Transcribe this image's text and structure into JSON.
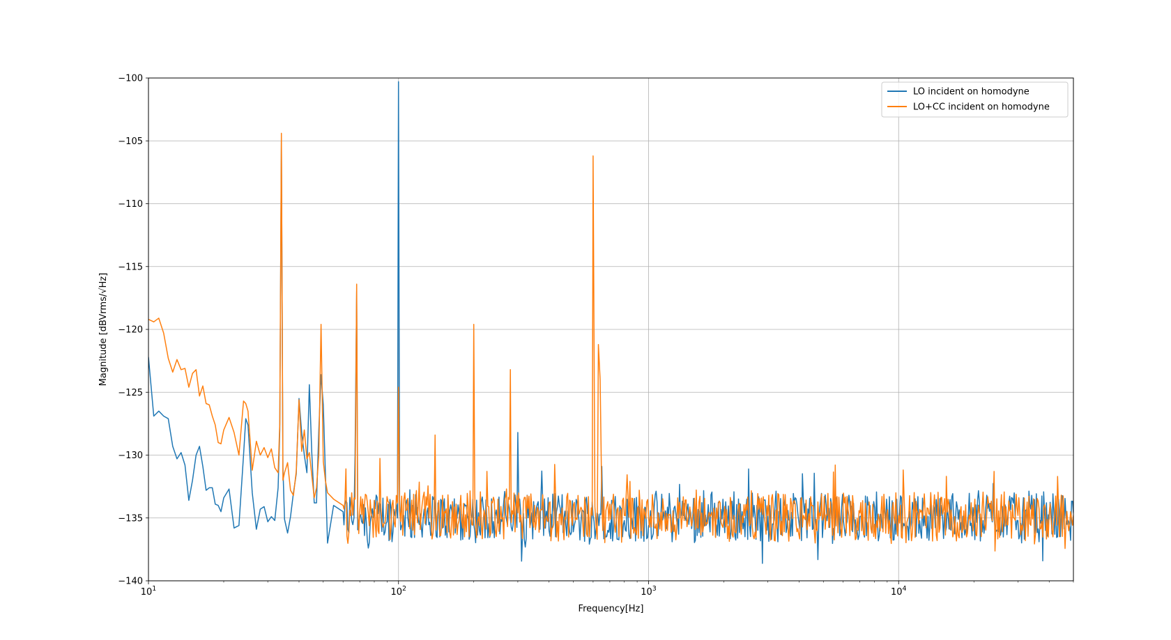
{
  "chart_data": {
    "type": "line",
    "title": "",
    "xlabel": "Frequency[Hz]",
    "ylabel": "Magnitude [dBVrms/√Hz]",
    "xscale": "log",
    "xlim": [
      10,
      50000
    ],
    "ylim": [
      -140,
      -100
    ],
    "grid": true,
    "legend_position": "top-right",
    "x_ticks": [
      {
        "value": 10,
        "base": "10",
        "exp": "1"
      },
      {
        "value": 100,
        "base": "10",
        "exp": "2"
      },
      {
        "value": 1000,
        "base": "10",
        "exp": "3"
      },
      {
        "value": 10000,
        "base": "10",
        "exp": "4"
      }
    ],
    "y_ticks": [
      {
        "value": -100,
        "label": "−100"
      },
      {
        "value": -105,
        "label": "−105"
      },
      {
        "value": -110,
        "label": "−110"
      },
      {
        "value": -115,
        "label": "−115"
      },
      {
        "value": -120,
        "label": "−120"
      },
      {
        "value": -125,
        "label": "−125"
      },
      {
        "value": -130,
        "label": "−130"
      },
      {
        "value": -135,
        "label": "−135"
      },
      {
        "value": -140,
        "label": "−140"
      }
    ],
    "series": [
      {
        "name": "LO incident on homodyne",
        "color": "#1f77b4",
        "x": [
          10,
          10.5,
          11,
          11.5,
          12,
          12.5,
          13,
          13.5,
          14,
          14.5,
          15,
          15.5,
          16,
          16.5,
          17,
          17.5,
          18,
          18.5,
          19,
          19.5,
          20,
          21,
          22,
          23,
          24,
          24.5,
          25,
          26,
          27,
          28,
          29,
          30,
          31,
          32,
          33,
          33.5,
          34,
          34.5,
          35,
          36,
          37,
          38,
          39,
          40,
          41,
          42,
          43,
          44,
          45,
          46,
          47,
          48,
          49,
          50,
          51,
          52,
          55,
          60,
          65,
          67,
          68,
          70,
          75,
          80,
          85,
          90,
          95,
          99,
          100,
          101,
          105,
          110,
          120,
          130,
          150,
          170,
          190,
          200,
          220,
          250,
          280,
          300,
          350,
          400,
          500,
          600,
          650,
          700,
          800,
          1000,
          1200,
          1500,
          2000,
          3000,
          5000,
          7000,
          10000,
          15000,
          20000,
          30000,
          40000,
          50000
        ],
        "y": [
          -122.2,
          -126.9,
          -126.5,
          -126.9,
          -127.1,
          -129.3,
          -130.3,
          -129.8,
          -130.8,
          -133.6,
          -132.0,
          -130.0,
          -129.3,
          -130.9,
          -132.8,
          -132.6,
          -132.6,
          -133.9,
          -134.0,
          -134.5,
          -133.4,
          -132.7,
          -135.8,
          -135.6,
          -130.0,
          -127.1,
          -127.6,
          -133.0,
          -135.9,
          -134.3,
          -134.1,
          -135.3,
          -134.9,
          -135.2,
          -132.6,
          -128.0,
          -105.0,
          -131.0,
          -135.1,
          -136.2,
          -134.9,
          -133.0,
          -131.5,
          -125.5,
          -128.2,
          -130.0,
          -131.4,
          -124.4,
          -129.8,
          -133.8,
          -133.8,
          -128.0,
          -123.6,
          -126.0,
          -131.4,
          -137.0,
          -134.0,
          -134.5,
          -135.2,
          -130.0,
          -117.0,
          -134.9,
          -136.7,
          -133.6,
          -134.9,
          -135.3,
          -136.1,
          -135.0,
          -100.3,
          -133.5,
          -134.8,
          -135.7,
          -135.2,
          -134.5,
          -135.8,
          -135.2,
          -135.1,
          -135.5,
          -134.6,
          -135.4,
          -135.0,
          -128.2,
          -135.3,
          -136.0,
          -136.1,
          -134.8,
          -130.9,
          -135.4,
          -135.2,
          -135.6,
          -135.0,
          -135.1,
          -135.0,
          -134.8,
          -135.2,
          -134.9,
          -135.0,
          -135.1,
          -134.9,
          -135.2,
          -135.1,
          -134.6
        ],
        "noise_amplitude": 1.9
      },
      {
        "name": "LO+CC incident on homodyne",
        "color": "#ff7f0e",
        "x": [
          10,
          10.5,
          11,
          11.5,
          12,
          12.5,
          13,
          13.5,
          14,
          14.5,
          15,
          15.5,
          16,
          16.5,
          17,
          17.5,
          18,
          18.5,
          19,
          19.5,
          20,
          21,
          22,
          23,
          24,
          24.5,
          25,
          26,
          27,
          28,
          29,
          30,
          31,
          32,
          33,
          33.5,
          34,
          34.5,
          35,
          36,
          37,
          38,
          39,
          40,
          41,
          42,
          43,
          44,
          45,
          46,
          47,
          48,
          49,
          50,
          51,
          52,
          55,
          60,
          65,
          67,
          68,
          70,
          75,
          80,
          85,
          90,
          95,
          99,
          100,
          101,
          105,
          110,
          120,
          130,
          140,
          150,
          170,
          190,
          200,
          220,
          250,
          280,
          300,
          350,
          400,
          500,
          590,
          600,
          610,
          630,
          640,
          650,
          700,
          800,
          1000,
          1200,
          1500,
          2000,
          3000,
          5000,
          7000,
          10000,
          15000,
          20000,
          30000,
          40000,
          50000
        ],
        "y": [
          -119.2,
          -119.4,
          -119.1,
          -120.3,
          -122.3,
          -123.4,
          -122.4,
          -123.2,
          -123.1,
          -124.6,
          -123.5,
          -123.2,
          -125.3,
          -124.5,
          -125.9,
          -126.0,
          -126.9,
          -127.6,
          -129.0,
          -129.1,
          -128.0,
          -127.0,
          -128.2,
          -130.0,
          -125.7,
          -125.9,
          -126.5,
          -131.2,
          -128.9,
          -130.0,
          -129.4,
          -130.2,
          -129.5,
          -131.0,
          -131.4,
          -127.5,
          -104.4,
          -132.0,
          -131.4,
          -130.6,
          -132.8,
          -133.2,
          -131.3,
          -125.6,
          -129.7,
          -128.0,
          -130.3,
          -129.8,
          -131.6,
          -133.4,
          -132.6,
          -130.0,
          -119.6,
          -130.5,
          -132.0,
          -133.0,
          -133.5,
          -134.0,
          -133.0,
          -133.5,
          -116.4,
          -134.4,
          -133.7,
          -133.6,
          -134.2,
          -133.3,
          -133.6,
          -133.8,
          -124.6,
          -134.4,
          -133.5,
          -134.5,
          -133.9,
          -134.0,
          -128.4,
          -133.2,
          -133.9,
          -134.2,
          -119.6,
          -134.4,
          -133.5,
          -123.2,
          -134.6,
          -134.0,
          -133.8,
          -134.0,
          -134.2,
          -106.2,
          -134.1,
          -121.2,
          -124.0,
          -133.7,
          -133.9,
          -134.8,
          -135.0,
          -134.7,
          -134.9,
          -134.9,
          -134.8,
          -134.9,
          -134.6,
          -134.8,
          -134.7,
          -134.9,
          -134.8,
          -134.7,
          -134.8
        ],
        "noise_amplitude": 1.9
      }
    ]
  }
}
